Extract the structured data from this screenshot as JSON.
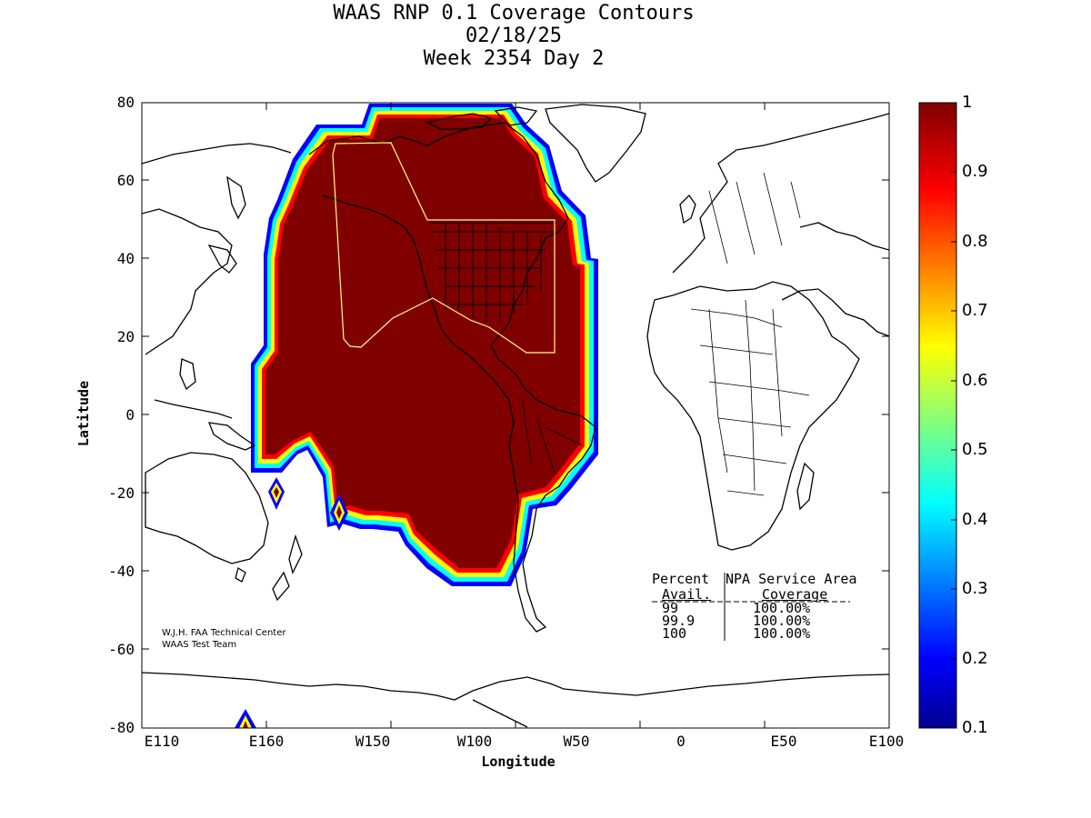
{
  "title": {
    "line1": "WAAS RNP 0.1 Coverage Contours",
    "line2": "02/18/25",
    "line3": "Week 2354 Day 2"
  },
  "axes": {
    "xlabel": "Longitude",
    "ylabel": "Latitude",
    "xticks": [
      "E110",
      "E160",
      "W150",
      "W100",
      "W50",
      "0",
      "E50",
      "E100"
    ],
    "yticks": [
      "80",
      "60",
      "40",
      "20",
      "0",
      "-20",
      "-40",
      "-60",
      "-80"
    ]
  },
  "colorbar": {
    "labels": [
      "1",
      "0.9",
      "0.8",
      "0.7",
      "0.6",
      "0.5",
      "0.4",
      "0.3",
      "0.2",
      "0.1"
    ],
    "colors": [
      "#00008f",
      "#0000ff",
      "#00ffff",
      "#ffff00",
      "#ff0000",
      "#800000"
    ]
  },
  "coverage_color": "#800000",
  "service_area_color": "#ffff80",
  "credits": {
    "line1": "W.J.H. FAA Technical Center",
    "line2": "WAAS Test Team"
  },
  "stats": {
    "header1_col1": "Percent",
    "header1_col2": "NPA Service Area",
    "header2_col1": "Avail.",
    "header2_col2": "Coverage",
    "rows": [
      {
        "avail": "99",
        "coverage": "100.00%"
      },
      {
        "avail": "99.9",
        "coverage": "100.00%"
      },
      {
        "avail": "100",
        "coverage": "100.00%"
      }
    ]
  }
}
